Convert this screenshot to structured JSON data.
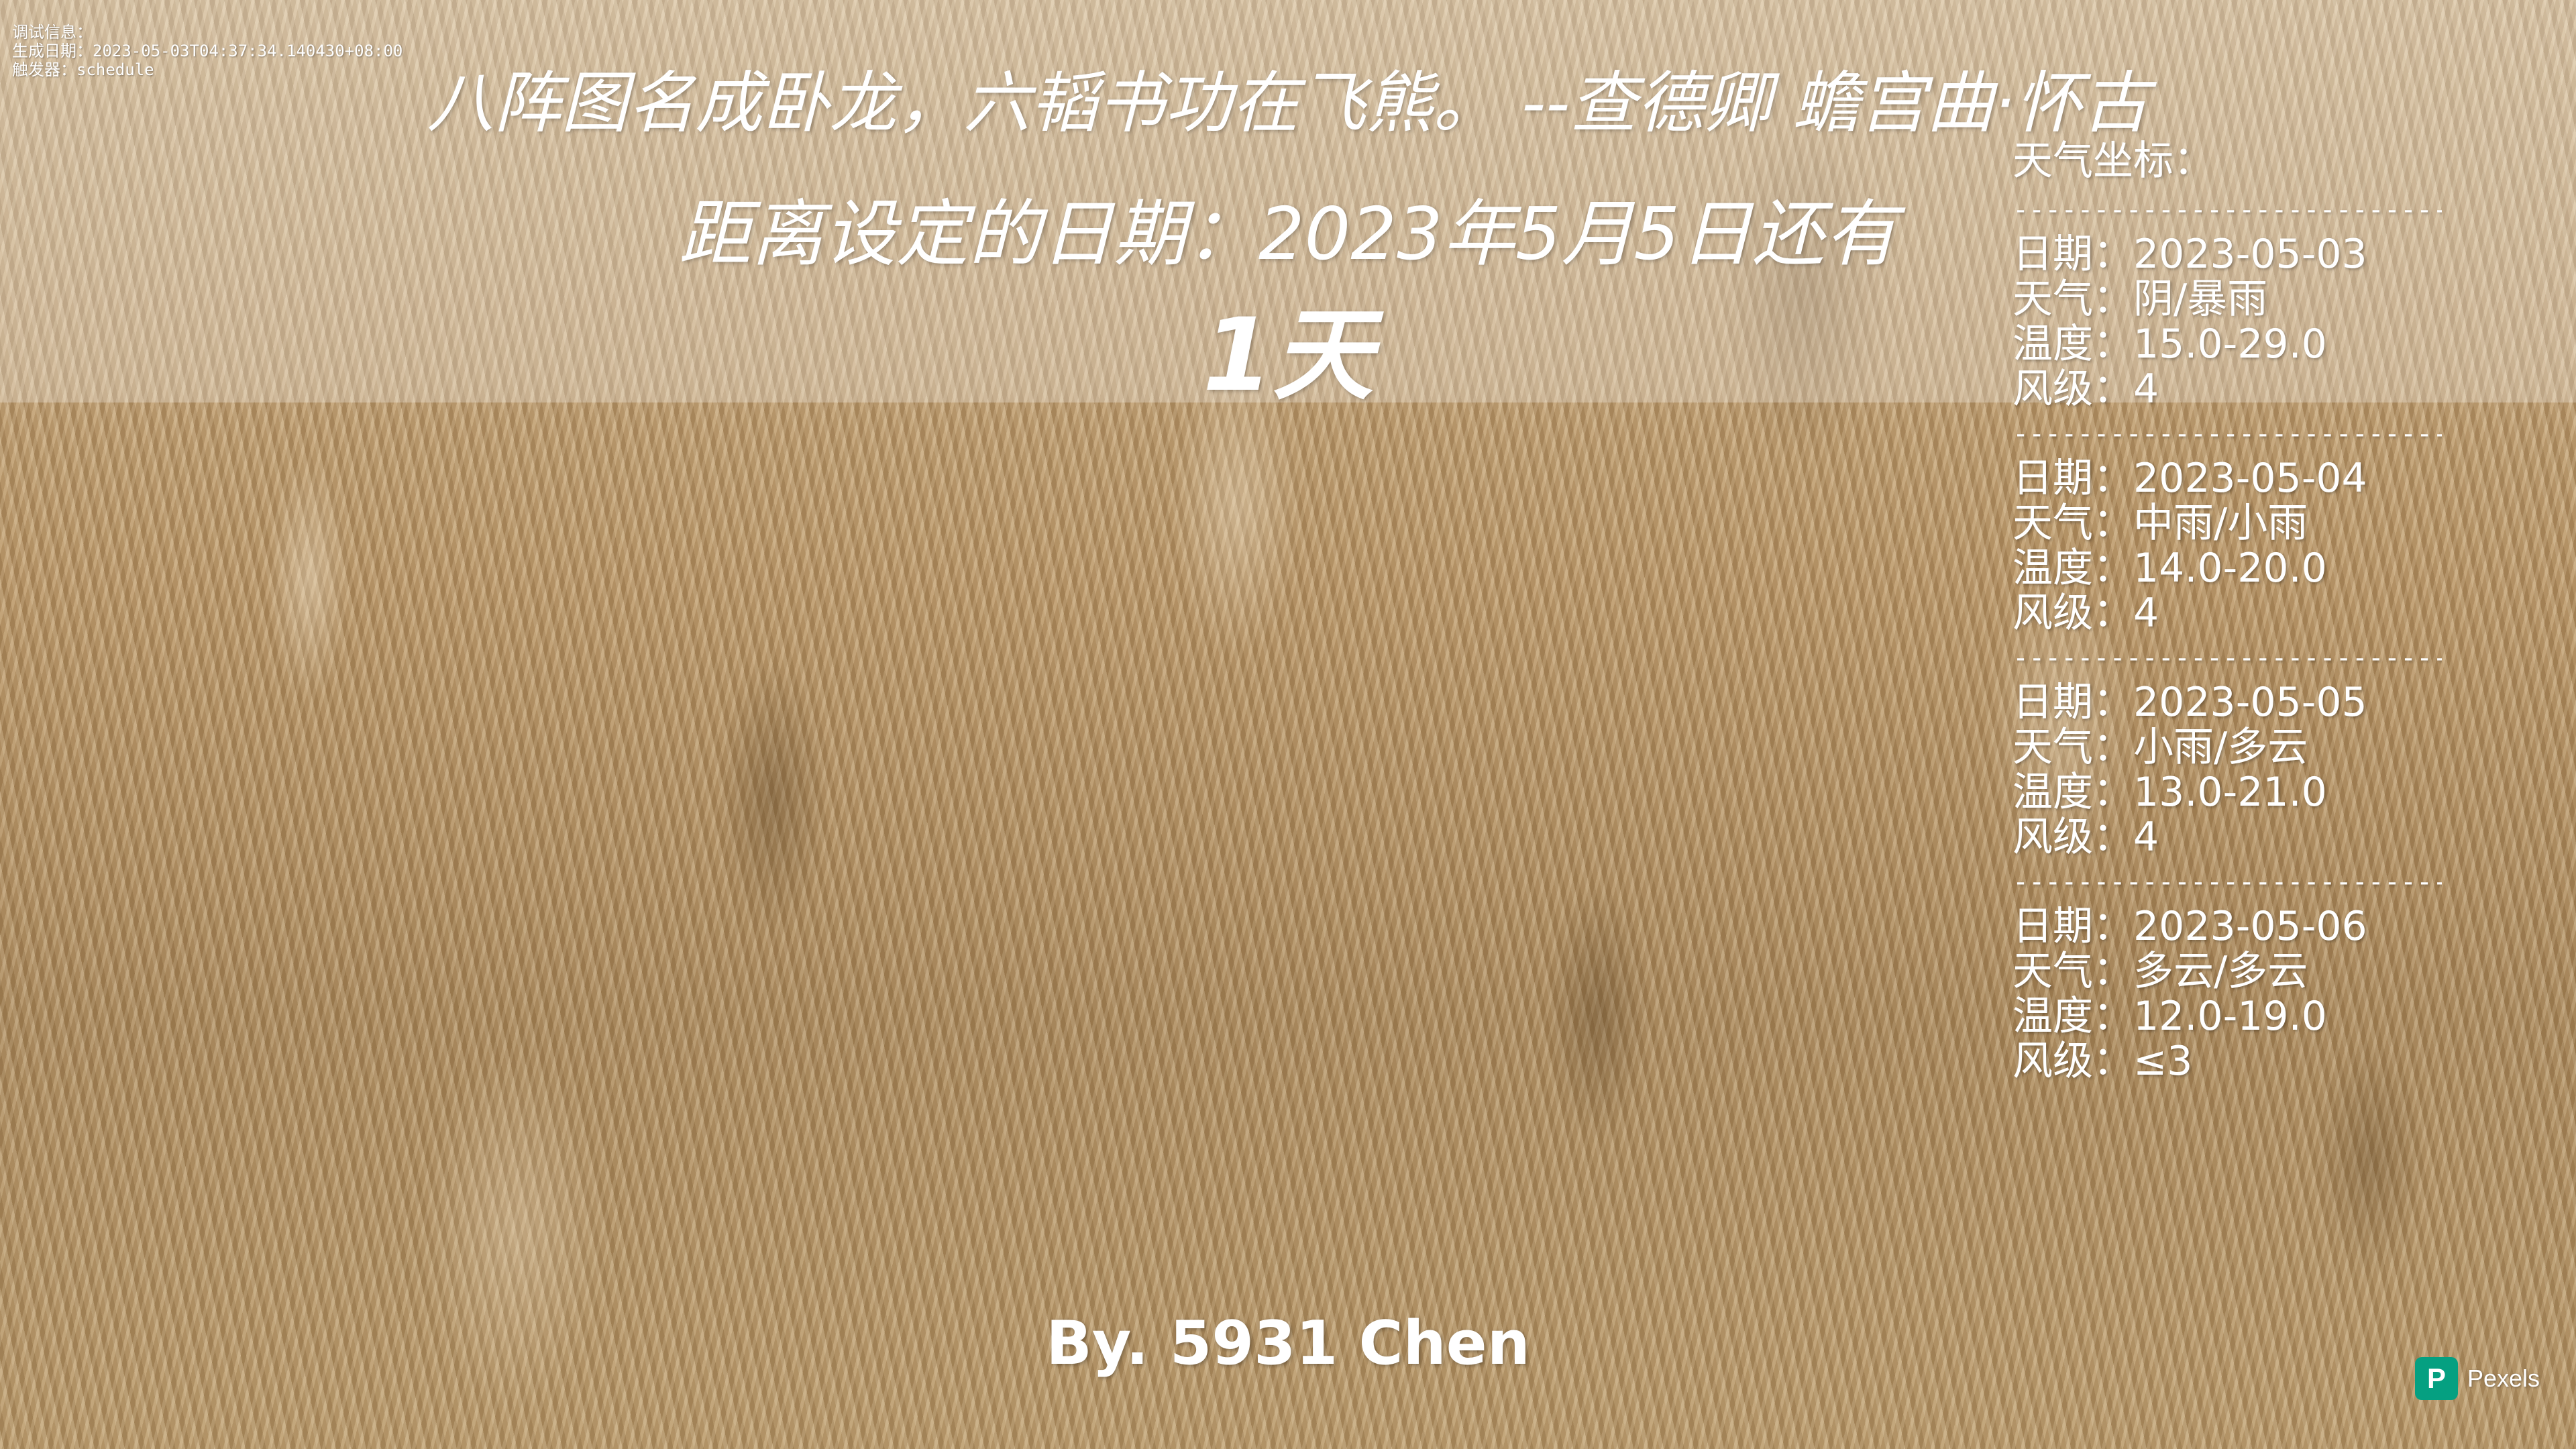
{
  "debug": {
    "title": "调试信息：",
    "generated": "生成日期：2023-05-03T04:37:34.140430+08:00",
    "trigger": "触发器：schedule"
  },
  "quote": "八阵图名成卧龙，六韬书功在飞熊。 --查德卿 蟾宫曲·怀古",
  "countdown": {
    "label": "距离设定的日期：2023年5月5日还有",
    "value": "1天"
  },
  "weather": {
    "title": "天气坐标：",
    "separator": "----------------------------",
    "days": [
      {
        "date": "日期：2023-05-03",
        "weather": "天气：阴/暴雨",
        "temp": "温度：15.0-29.0",
        "wind": "风级：4"
      },
      {
        "date": "日期：2023-05-04",
        "weather": "天气：中雨/小雨",
        "temp": "温度：14.0-20.0",
        "wind": "风级：4"
      },
      {
        "date": "日期：2023-05-05",
        "weather": "天气：小雨/多云",
        "temp": "温度：13.0-21.0",
        "wind": "风级：4"
      },
      {
        "date": "日期：2023-05-06",
        "weather": "天气：多云/多云",
        "temp": "温度：12.0-19.0",
        "wind": "风级：≤3"
      }
    ]
  },
  "author": "By. 5931 Chen",
  "watermark": {
    "logo_letter": "P",
    "text": "Pexels",
    "logo_color": "#05a081"
  }
}
